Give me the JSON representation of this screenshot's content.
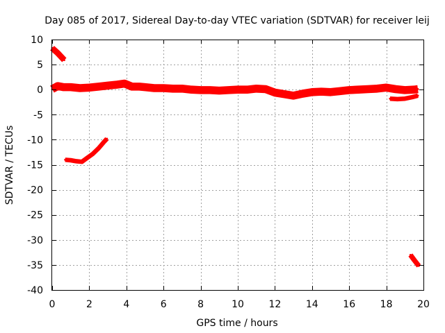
{
  "chart_data": {
    "type": "scatter",
    "title": "Day 085 of 2017, Sidereal Day-to-day VTEC variation (SDTVAR) for receiver leij",
    "xlabel": "GPS time / hours",
    "ylabel": "SDTVAR / TECUs",
    "xlim": [
      0,
      20
    ],
    "ylim": [
      -40,
      10
    ],
    "xticks": [
      0,
      2,
      4,
      6,
      8,
      10,
      12,
      14,
      16,
      18,
      20
    ],
    "yticks": [
      -40,
      -35,
      -30,
      -25,
      -20,
      -15,
      -10,
      -5,
      0,
      5,
      10
    ],
    "grid": true,
    "legend": "none",
    "series": [
      {
        "name": "main-band",
        "color": "#ff0000",
        "band_width_tecu": 1.6,
        "points": [
          [
            0.0,
            0.1
          ],
          [
            0.3,
            0.7
          ],
          [
            0.6,
            0.5
          ],
          [
            1.0,
            0.5
          ],
          [
            1.5,
            0.3
          ],
          [
            2.0,
            0.4
          ],
          [
            2.5,
            0.6
          ],
          [
            3.0,
            0.8
          ],
          [
            3.5,
            1.0
          ],
          [
            3.9,
            1.2
          ],
          [
            4.3,
            0.6
          ],
          [
            4.7,
            0.6
          ],
          [
            5.0,
            0.5
          ],
          [
            5.5,
            0.3
          ],
          [
            6.0,
            0.3
          ],
          [
            6.5,
            0.2
          ],
          [
            7.0,
            0.2
          ],
          [
            7.5,
            0.0
          ],
          [
            8.0,
            -0.1
          ],
          [
            8.5,
            -0.1
          ],
          [
            9.0,
            -0.2
          ],
          [
            9.5,
            -0.1
          ],
          [
            10.0,
            0.0
          ],
          [
            10.5,
            0.0
          ],
          [
            11.0,
            0.2
          ],
          [
            11.5,
            0.1
          ],
          [
            12.0,
            -0.6
          ],
          [
            12.5,
            -0.9
          ],
          [
            13.0,
            -1.2
          ],
          [
            13.5,
            -0.8
          ],
          [
            14.0,
            -0.5
          ],
          [
            14.5,
            -0.4
          ],
          [
            15.0,
            -0.5
          ],
          [
            15.5,
            -0.3
          ],
          [
            16.0,
            -0.1
          ],
          [
            16.5,
            0.0
          ],
          [
            17.0,
            0.1
          ],
          [
            17.5,
            0.2
          ],
          [
            18.0,
            0.4
          ],
          [
            18.5,
            0.1
          ],
          [
            19.0,
            -0.1
          ],
          [
            19.5,
            0.0
          ],
          [
            19.7,
            0.1
          ]
        ]
      },
      {
        "name": "secondary-segment",
        "color": "#ff0000",
        "band_width_tecu": 0.9,
        "points": [
          [
            18.2,
            -1.8
          ],
          [
            18.6,
            -1.9
          ],
          [
            19.0,
            -1.8
          ],
          [
            19.4,
            -1.5
          ],
          [
            19.7,
            -1.2
          ]
        ]
      },
      {
        "name": "curve-segment",
        "color": "#ff0000",
        "band_width_tecu": 0.9,
        "points": [
          [
            0.7,
            -14.0
          ],
          [
            1.0,
            -14.1
          ],
          [
            1.3,
            -14.3
          ],
          [
            1.6,
            -14.4
          ],
          [
            1.9,
            -13.6
          ],
          [
            2.2,
            -12.8
          ],
          [
            2.5,
            -11.7
          ],
          [
            2.8,
            -10.4
          ],
          [
            2.95,
            -9.8
          ]
        ]
      },
      {
        "name": "start-segment",
        "color": "#ff0000",
        "band_width_tecu": 1.2,
        "points": [
          [
            0.0,
            8.3
          ],
          [
            0.3,
            7.3
          ],
          [
            0.65,
            5.9
          ]
        ]
      },
      {
        "name": "end-segment",
        "color": "#ff0000",
        "band_width_tecu": 1.0,
        "points": [
          [
            19.3,
            -33.0
          ],
          [
            19.5,
            -34.0
          ],
          [
            19.75,
            -35.2
          ]
        ]
      }
    ]
  }
}
